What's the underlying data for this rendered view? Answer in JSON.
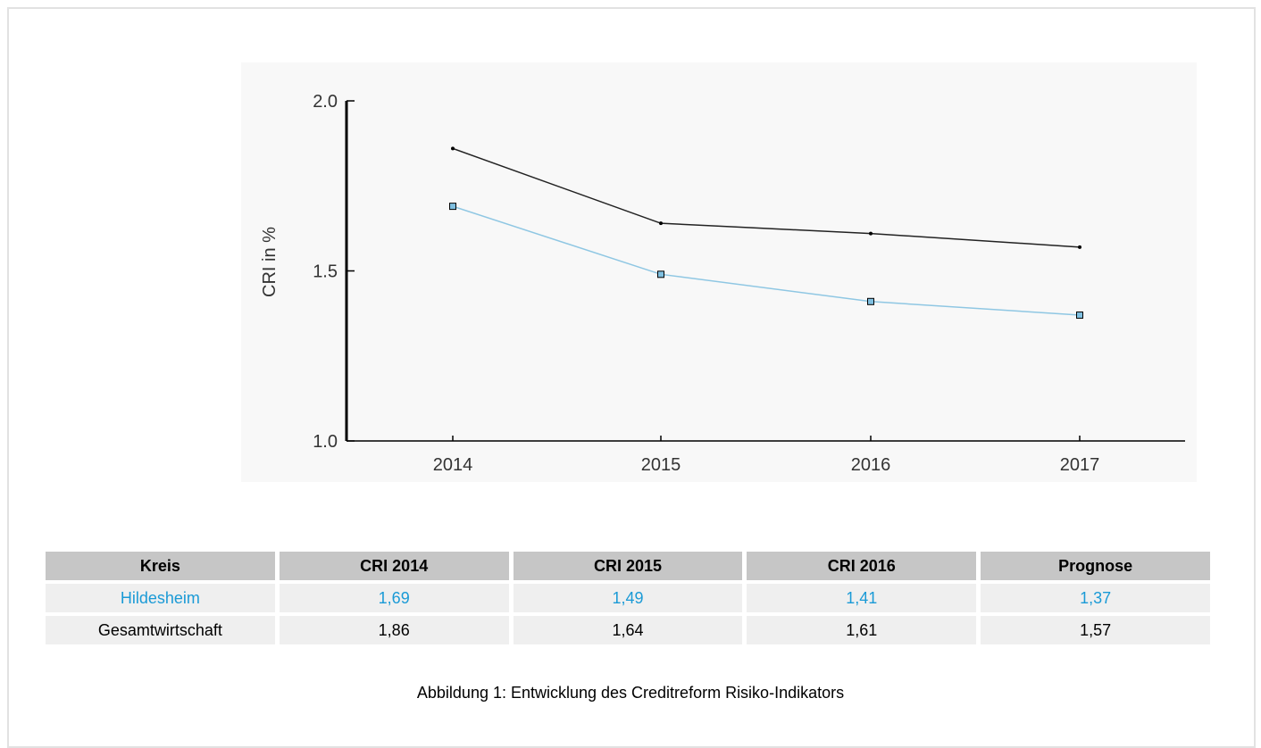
{
  "chart_data": {
    "type": "line",
    "categories": [
      "2014",
      "2015",
      "2016",
      "2017"
    ],
    "series": [
      {
        "name": "Gesamtwirtschaft",
        "values": [
          1.86,
          1.64,
          1.61,
          1.57
        ],
        "color": "#222222",
        "marker": "dot"
      },
      {
        "name": "Hildesheim",
        "values": [
          1.69,
          1.49,
          1.41,
          1.37
        ],
        "color": "#8fc7e3",
        "marker": "square"
      }
    ],
    "ylabel": "CRI in %",
    "ylim": [
      1.0,
      2.0
    ],
    "yticks": [
      "1.0",
      "1.5",
      "2.0"
    ],
    "grid": false
  },
  "table": {
    "headers": [
      "Kreis",
      "CRI  2014",
      "CRI  2015",
      "CRI  2016",
      "Prognose"
    ],
    "rows": [
      {
        "cells": [
          "Hildesheim",
          "1,69",
          "1,49",
          "1,41",
          "1,37"
        ]
      },
      {
        "cells": [
          "Gesamtwirtschaft",
          "1,86",
          "1,64",
          "1,61",
          "1,57"
        ]
      }
    ]
  },
  "colors": {
    "highlight": "#1a9ad6",
    "header_bg": "#c6c6c6",
    "cell_bg": "#efefef"
  },
  "caption": "Abbildung 1: Entwicklung des Creditreform Risiko-Indikators"
}
